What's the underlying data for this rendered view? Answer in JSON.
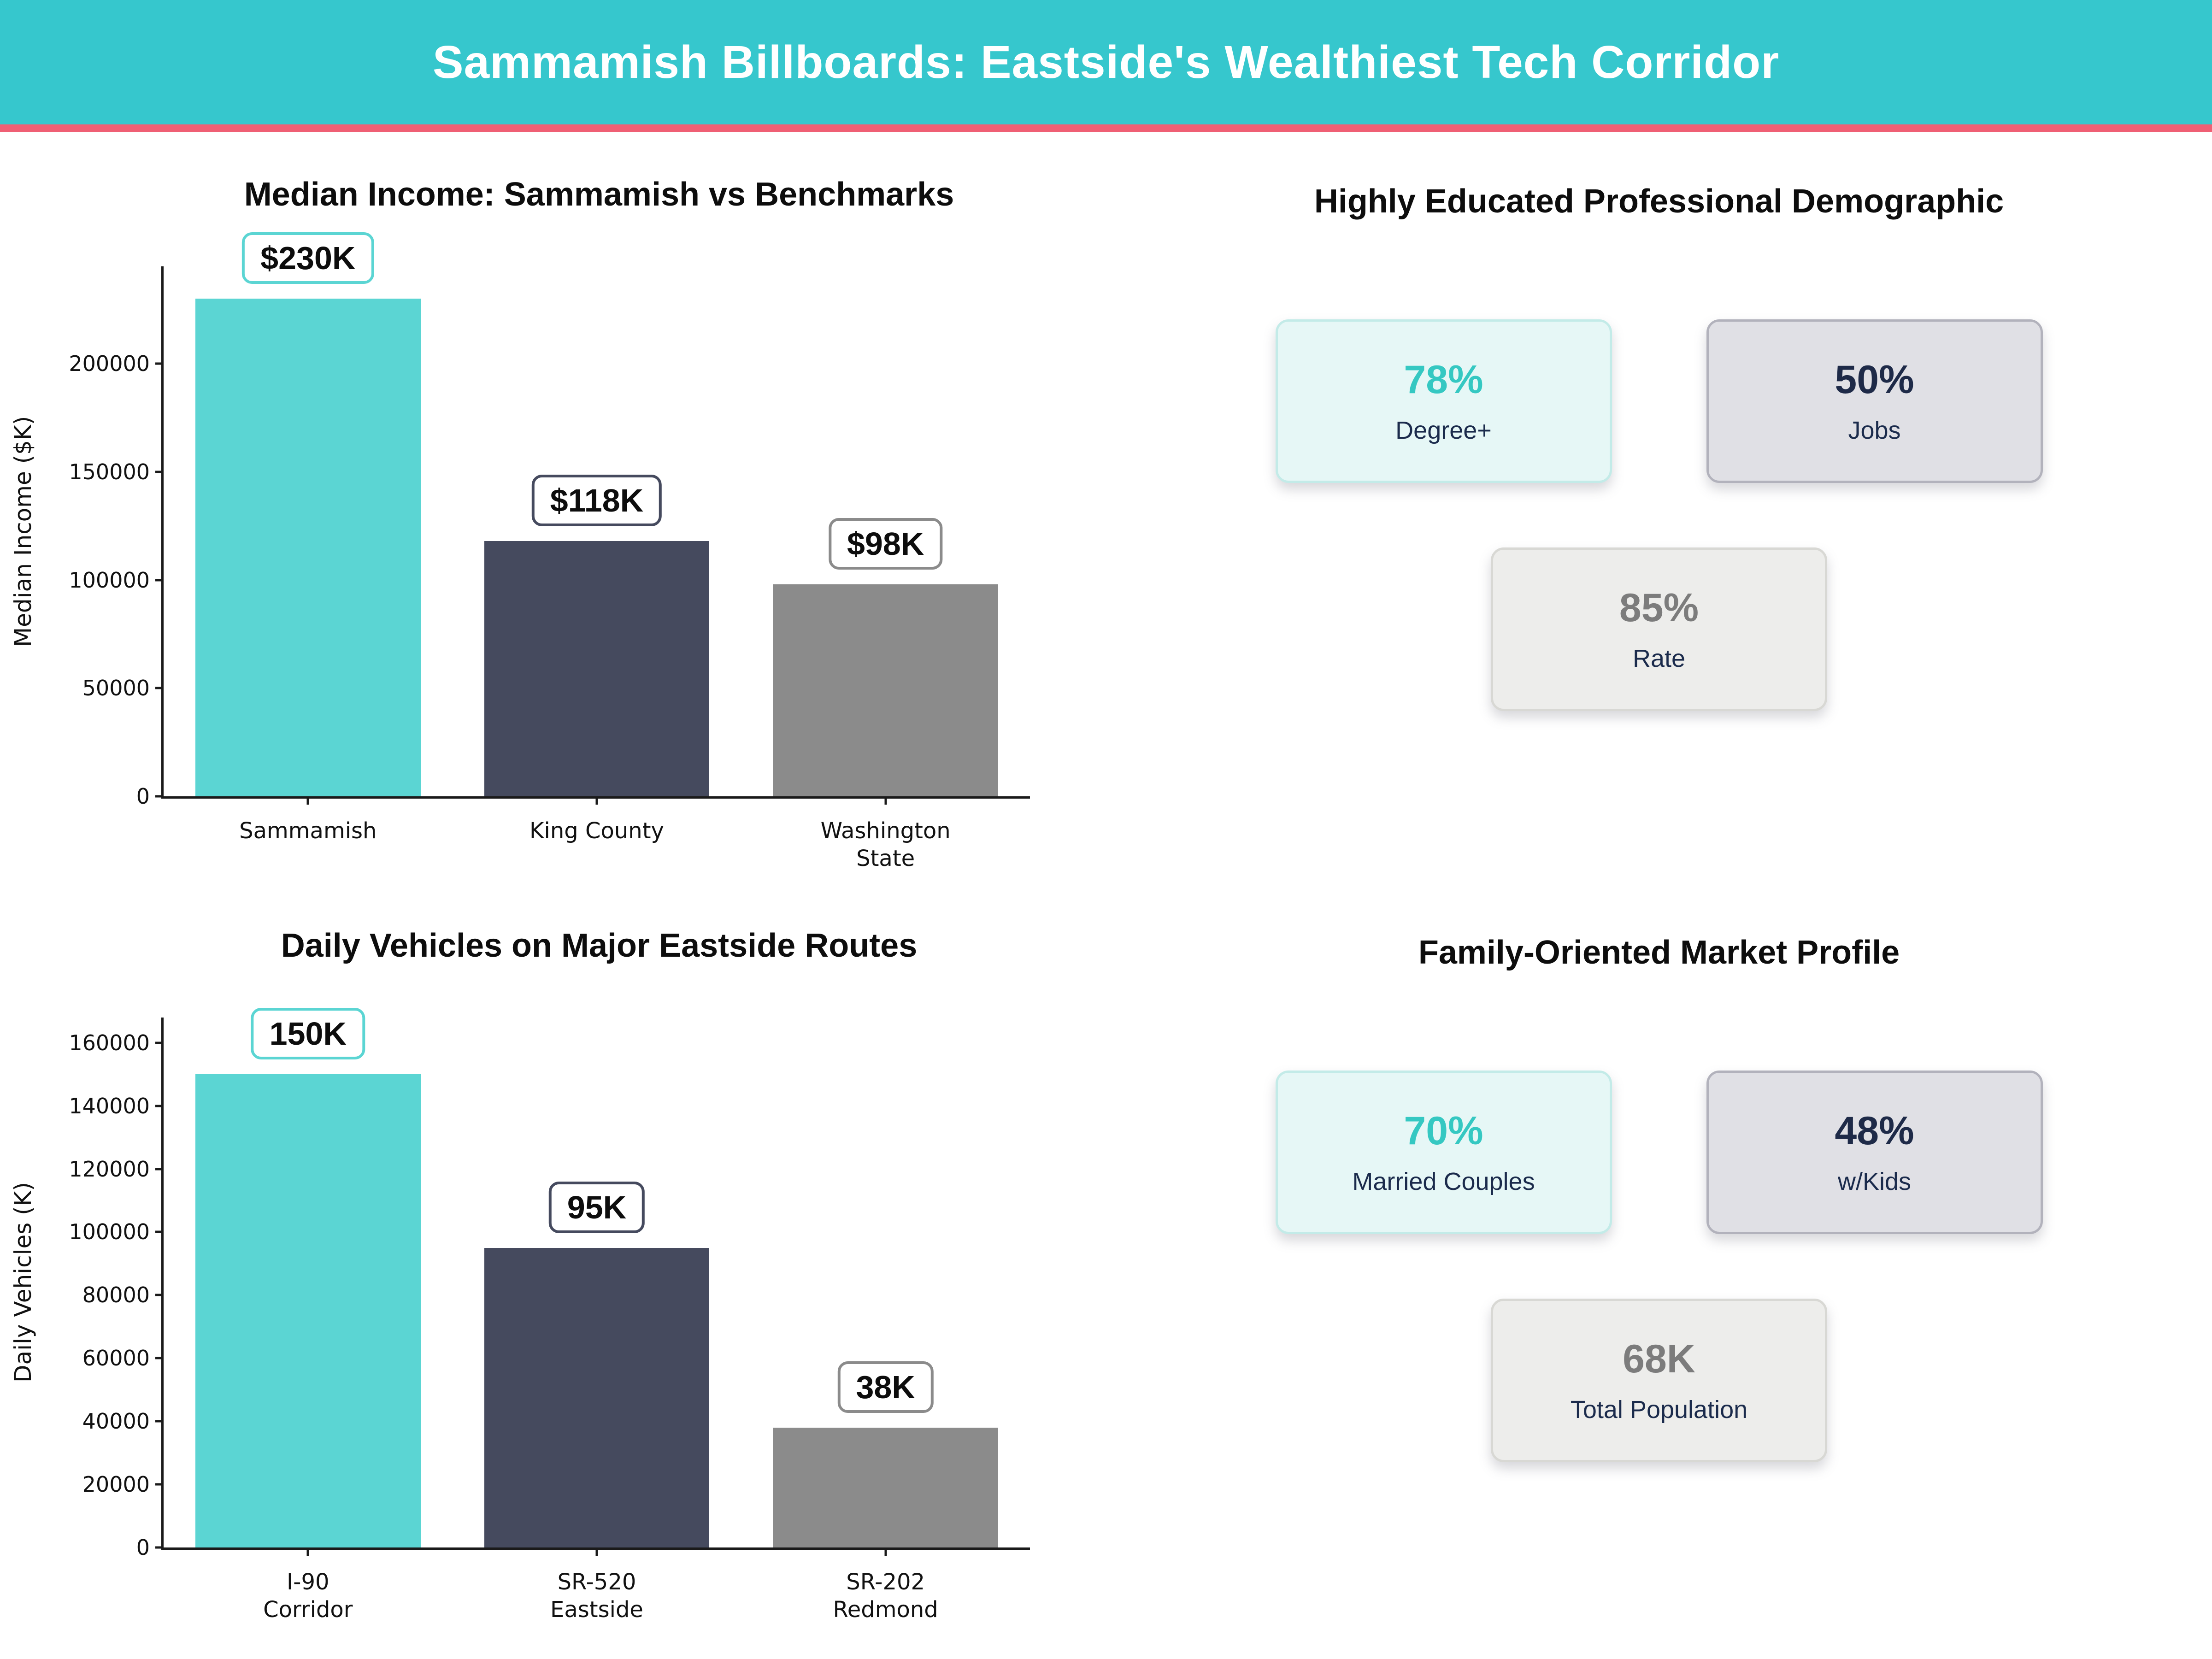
{
  "header": {
    "title": "Sammamish Billboards: Eastside's Wealthiest Tech Corridor"
  },
  "colors": {
    "header_bg": "#36c7cd",
    "divider": "#ef5f74",
    "bar_teal": "#5bd5d3",
    "bar_navy": "#454a5e",
    "bar_gray": "#8b8b8b",
    "value_teal": "#35c8c2",
    "value_navy": "#1e2a48",
    "value_gray": "#7c7c7c",
    "label_navy": "#1b2b4c"
  },
  "chart_data": [
    {
      "type": "bar",
      "title": "Median Income: Sammamish vs Benchmarks",
      "xlabel": "",
      "ylabel": "Median Income ($K)",
      "categories": [
        [
          "Sammamish"
        ],
        [
          "King County"
        ],
        [
          "Washington",
          "State"
        ]
      ],
      "values": [
        230000,
        118000,
        98000
      ],
      "bar_labels": [
        "$230K",
        "$118K",
        "$98K"
      ],
      "bar_colors": [
        "#5bd5d3",
        "#454a5e",
        "#8b8b8b"
      ],
      "yticks": [
        0,
        50000,
        100000,
        150000,
        200000
      ],
      "ylim": [
        0,
        245000
      ],
      "grid": false,
      "legend": null
    },
    {
      "type": "bar",
      "title": "Daily Vehicles on Major Eastside Routes",
      "xlabel": "",
      "ylabel": "Daily Vehicles (K)",
      "categories": [
        [
          "I-90",
          "Corridor"
        ],
        [
          "SR-520",
          "Eastside"
        ],
        [
          "SR-202",
          "Redmond"
        ]
      ],
      "values": [
        150000,
        95000,
        38000
      ],
      "bar_labels": [
        "150K",
        "95K",
        "38K"
      ],
      "bar_colors": [
        "#5bd5d3",
        "#454a5e",
        "#8b8b8b"
      ],
      "yticks": [
        0,
        20000,
        40000,
        60000,
        80000,
        100000,
        120000,
        140000,
        160000
      ],
      "ylim": [
        0,
        168000
      ],
      "grid": false,
      "legend": null
    }
  ],
  "stat_panels": [
    {
      "title": "Highly Educated Professional Demographic",
      "cards": [
        {
          "value": "78%",
          "label": "Degree+",
          "style": "mint"
        },
        {
          "value": "50%",
          "label": "Jobs",
          "style": "slate"
        },
        {
          "value": "85%",
          "label": "Rate",
          "style": "light"
        }
      ]
    },
    {
      "title": "Family-Oriented Market Profile",
      "cards": [
        {
          "value": "70%",
          "label": "Married Couples",
          "style": "mint"
        },
        {
          "value": "48%",
          "label": "w/Kids",
          "style": "slate"
        },
        {
          "value": "68K",
          "label": "Total Population",
          "style": "light"
        }
      ]
    }
  ]
}
